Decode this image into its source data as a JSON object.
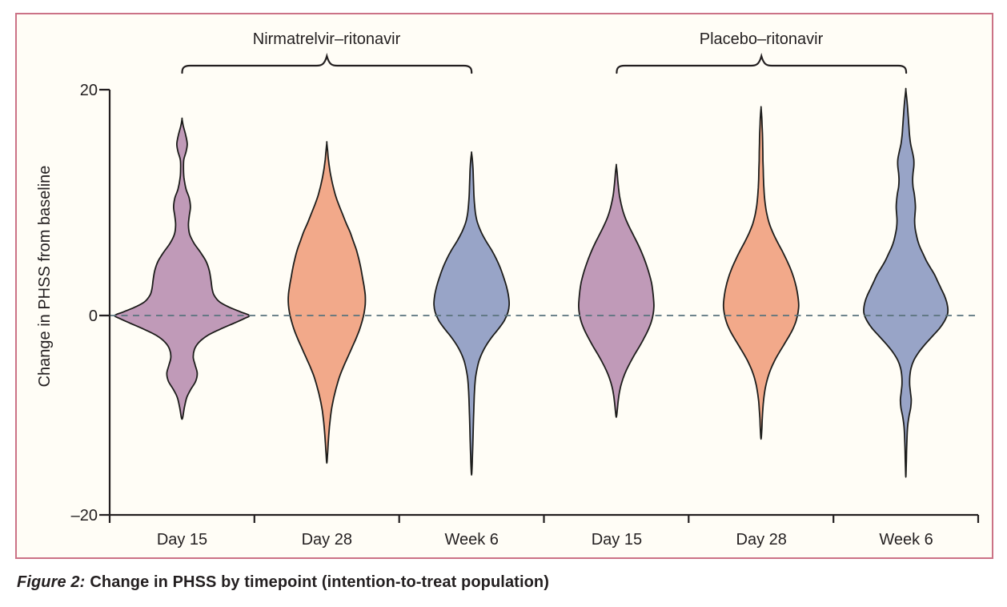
{
  "figure": {
    "caption_prefix": "Figure 2:",
    "caption_text": "Change in PHSS by timepoint (intention-to-treat population)"
  },
  "colors": {
    "panel_border": "#cb7286",
    "panel_background": "#fffdf6",
    "violin_purple": "#c09ab8",
    "violin_orange": "#f2a98a",
    "violin_blue": "#98a4c7",
    "outline": "#1d1d1b",
    "zero_line": "#5a737e",
    "axis": "#231f20"
  },
  "chart_data": {
    "type": "violin",
    "title": "",
    "ylabel": "Change in PHSS from baseline",
    "ylim": [
      -20,
      20
    ],
    "yticks": [
      20,
      0,
      -20
    ],
    "ytick_labels": [
      "20",
      "0",
      "–20"
    ],
    "zero_reference_line": {
      "y": 0,
      "style": "dashed"
    },
    "legend": "none",
    "groups": [
      {
        "label": "Nirmatrelvir–ritonavir",
        "timepoints": [
          "Day 15",
          "Day 28",
          "Week 6"
        ]
      },
      {
        "label": "Placebo–ritonavir",
        "timepoints": [
          "Day 15",
          "Day 28",
          "Week 6"
        ]
      }
    ],
    "outline_color": "#1d1d1b",
    "series_note": "profile = [change-in-PHSS value, violin half-width in px] pairs from top of violin to bottom; width encodes density",
    "series": [
      {
        "group_key": "nirmatrelvir-ritonavir",
        "timepoint": "Day 15",
        "color": "#c09ab8",
        "value_range": [
          -10.4,
          17.4
        ],
        "profile": [
          [
            17.4,
            0
          ],
          [
            16.8,
            1.5
          ],
          [
            16.0,
            4.5
          ],
          [
            15.2,
            6.5
          ],
          [
            14.5,
            5
          ],
          [
            13.8,
            2.2
          ],
          [
            13.0,
            1.8
          ],
          [
            12.2,
            2.4
          ],
          [
            11.2,
            5
          ],
          [
            10.4,
            9
          ],
          [
            9.6,
            10.5
          ],
          [
            8.8,
            9
          ],
          [
            8.0,
            8
          ],
          [
            7.2,
            9.5
          ],
          [
            6.4,
            15
          ],
          [
            5.6,
            23
          ],
          [
            4.8,
            30
          ],
          [
            4.0,
            34
          ],
          [
            3.2,
            36
          ],
          [
            2.4,
            37.5
          ],
          [
            1.8,
            40
          ],
          [
            1.2,
            47
          ],
          [
            0.7,
            60
          ],
          [
            0.3,
            74
          ],
          [
            0,
            84
          ],
          [
            -0.3,
            78
          ],
          [
            -0.8,
            64
          ],
          [
            -1.4,
            47
          ],
          [
            -2.0,
            32
          ],
          [
            -2.7,
            21
          ],
          [
            -3.4,
            15.5
          ],
          [
            -4.2,
            14
          ],
          [
            -5.0,
            16.5
          ],
          [
            -5.8,
            19
          ],
          [
            -6.6,
            17
          ],
          [
            -7.4,
            11
          ],
          [
            -8.2,
            6
          ],
          [
            -9.2,
            3
          ],
          [
            -10.4,
            0
          ]
        ]
      },
      {
        "group_key": "nirmatrelvir-ritonavir",
        "timepoint": "Day 28",
        "color": "#f2a98a",
        "value_range": [
          -14.8,
          15.3
        ],
        "profile": [
          [
            15.3,
            0
          ],
          [
            14.6,
            1
          ],
          [
            13.8,
            2
          ],
          [
            13.0,
            3.5
          ],
          [
            12.2,
            5.5
          ],
          [
            11.4,
            8
          ],
          [
            10.6,
            11
          ],
          [
            9.8,
            15
          ],
          [
            9.0,
            19.5
          ],
          [
            8.2,
            24
          ],
          [
            7.4,
            29
          ],
          [
            6.6,
            33
          ],
          [
            5.8,
            37
          ],
          [
            5.0,
            40
          ],
          [
            4.2,
            42.5
          ],
          [
            3.4,
            44.5
          ],
          [
            2.6,
            46.5
          ],
          [
            1.8,
            48
          ],
          [
            1.0,
            48
          ],
          [
            0.2,
            46.5
          ],
          [
            -0.6,
            44
          ],
          [
            -1.5,
            40.5
          ],
          [
            -2.4,
            36
          ],
          [
            -3.3,
            31
          ],
          [
            -4.2,
            26
          ],
          [
            -5.1,
            21
          ],
          [
            -6.0,
            16.5
          ],
          [
            -6.9,
            13
          ],
          [
            -7.8,
            10
          ],
          [
            -8.7,
            7.5
          ],
          [
            -9.6,
            5.5
          ],
          [
            -10.6,
            4
          ],
          [
            -11.6,
            2.8
          ],
          [
            -12.7,
            1.8
          ],
          [
            -13.8,
            1
          ],
          [
            -14.8,
            0
          ]
        ]
      },
      {
        "group_key": "nirmatrelvir-ritonavir",
        "timepoint": "Week 6",
        "color": "#98a4c7",
        "value_range": [
          -16,
          14.4
        ],
        "profile": [
          [
            14.4,
            0
          ],
          [
            13.8,
            1
          ],
          [
            13.0,
            1.8
          ],
          [
            12.2,
            2.2
          ],
          [
            11.4,
            2.6
          ],
          [
            10.6,
            3
          ],
          [
            9.8,
            3.8
          ],
          [
            9.0,
            5
          ],
          [
            8.2,
            7.5
          ],
          [
            7.4,
            12
          ],
          [
            6.6,
            18
          ],
          [
            5.8,
            25
          ],
          [
            5.0,
            31
          ],
          [
            4.2,
            36
          ],
          [
            3.4,
            40
          ],
          [
            2.6,
            43.5
          ],
          [
            1.8,
            46
          ],
          [
            1.0,
            47
          ],
          [
            0.3,
            45.5
          ],
          [
            -0.5,
            41
          ],
          [
            -1.3,
            34
          ],
          [
            -2.1,
            26
          ],
          [
            -2.9,
            19
          ],
          [
            -3.7,
            13.5
          ],
          [
            -4.5,
            9.5
          ],
          [
            -5.3,
            7
          ],
          [
            -6.1,
            5.2
          ],
          [
            -6.9,
            4.2
          ],
          [
            -7.7,
            3.6
          ],
          [
            -8.5,
            3.2
          ],
          [
            -9.5,
            2.8
          ],
          [
            -10.5,
            2.4
          ],
          [
            -11.7,
            2
          ],
          [
            -12.9,
            1.6
          ],
          [
            -14.1,
            1.1
          ],
          [
            -15.3,
            0.6
          ],
          [
            -16,
            0
          ]
        ]
      },
      {
        "group_key": "placebo-ritonavir",
        "timepoint": "Day 15",
        "color": "#c09ab8",
        "value_range": [
          -10.2,
          13.3
        ],
        "profile": [
          [
            13.3,
            0
          ],
          [
            12.7,
            1
          ],
          [
            12.0,
            1.8
          ],
          [
            11.3,
            2.8
          ],
          [
            10.6,
            4
          ],
          [
            9.9,
            6
          ],
          [
            9.2,
            8.5
          ],
          [
            8.5,
            12
          ],
          [
            7.8,
            16.5
          ],
          [
            7.1,
            21.5
          ],
          [
            6.4,
            26.5
          ],
          [
            5.7,
            31
          ],
          [
            5.0,
            35
          ],
          [
            4.3,
            38.5
          ],
          [
            3.6,
            41.5
          ],
          [
            2.9,
            44
          ],
          [
            2.2,
            45.5
          ],
          [
            1.5,
            46.5
          ],
          [
            0.8,
            47
          ],
          [
            0.1,
            46
          ],
          [
            -0.7,
            43.5
          ],
          [
            -1.5,
            39.5
          ],
          [
            -2.3,
            34.5
          ],
          [
            -3.1,
            29
          ],
          [
            -3.9,
            23
          ],
          [
            -4.7,
            17.5
          ],
          [
            -5.5,
            12.5
          ],
          [
            -6.3,
            8.5
          ],
          [
            -7.1,
            5.5
          ],
          [
            -7.9,
            3.5
          ],
          [
            -8.7,
            2.2
          ],
          [
            -9.5,
            1.2
          ],
          [
            -10.2,
            0
          ]
        ]
      },
      {
        "group_key": "placebo-ritonavir",
        "timepoint": "Day 28",
        "color": "#f2a98a",
        "value_range": [
          -12.4,
          18.4
        ],
        "profile": [
          [
            18.4,
            0
          ],
          [
            17.7,
            0.8
          ],
          [
            16.9,
            1.3
          ],
          [
            16.1,
            1.7
          ],
          [
            15.3,
            2
          ],
          [
            14.5,
            2.2
          ],
          [
            13.7,
            2.4
          ],
          [
            12.9,
            2.7
          ],
          [
            12.1,
            3
          ],
          [
            11.3,
            3.5
          ],
          [
            10.5,
            4.3
          ],
          [
            9.7,
            5.5
          ],
          [
            8.9,
            7.5
          ],
          [
            8.1,
            10.5
          ],
          [
            7.3,
            15
          ],
          [
            6.5,
            20.5
          ],
          [
            5.7,
            26.5
          ],
          [
            4.9,
            32
          ],
          [
            4.1,
            37
          ],
          [
            3.3,
            41
          ],
          [
            2.5,
            44
          ],
          [
            1.7,
            46
          ],
          [
            0.9,
            47
          ],
          [
            0.2,
            46
          ],
          [
            -0.6,
            43.5
          ],
          [
            -1.4,
            39.5
          ],
          [
            -2.2,
            34
          ],
          [
            -3.0,
            28
          ],
          [
            -3.8,
            22
          ],
          [
            -4.6,
            16.5
          ],
          [
            -5.4,
            12
          ],
          [
            -6.2,
            8.5
          ],
          [
            -7.0,
            6
          ],
          [
            -7.8,
            4.2
          ],
          [
            -8.6,
            3
          ],
          [
            -9.4,
            2.2
          ],
          [
            -10.3,
            1.5
          ],
          [
            -11.3,
            1
          ],
          [
            -12.4,
            0
          ]
        ]
      },
      {
        "group_key": "placebo-ritonavir",
        "timepoint": "Week 6",
        "color": "#98a4c7",
        "value_range": [
          -16.2,
          20
        ],
        "profile": [
          [
            20,
            0
          ],
          [
            19.2,
            1.2
          ],
          [
            18.4,
            2.2
          ],
          [
            17.6,
            3
          ],
          [
            16.8,
            3.8
          ],
          [
            16.0,
            4.6
          ],
          [
            15.2,
            6
          ],
          [
            14.4,
            8.5
          ],
          [
            13.8,
            10
          ],
          [
            13.2,
            10
          ],
          [
            12.6,
            9
          ],
          [
            12.0,
            8.5
          ],
          [
            11.4,
            9
          ],
          [
            10.8,
            10.5
          ],
          [
            10.2,
            11.5
          ],
          [
            9.6,
            12
          ],
          [
            9.0,
            11.5
          ],
          [
            8.4,
            11
          ],
          [
            7.8,
            11.5
          ],
          [
            7.2,
            13
          ],
          [
            6.6,
            15
          ],
          [
            6.0,
            18
          ],
          [
            5.4,
            22
          ],
          [
            4.8,
            26
          ],
          [
            4.2,
            31
          ],
          [
            3.6,
            36
          ],
          [
            3.0,
            40
          ],
          [
            2.4,
            44
          ],
          [
            1.8,
            48
          ],
          [
            1.2,
            51
          ],
          [
            0.6,
            52.5
          ],
          [
            0.1,
            52
          ],
          [
            -0.6,
            48
          ],
          [
            -1.3,
            42
          ],
          [
            -2.1,
            33
          ],
          [
            -2.9,
            24
          ],
          [
            -3.7,
            16
          ],
          [
            -4.5,
            10
          ],
          [
            -5.3,
            6.5
          ],
          [
            -6.1,
            5
          ],
          [
            -6.9,
            4.8
          ],
          [
            -7.7,
            5.8
          ],
          [
            -8.5,
            6.8
          ],
          [
            -9.3,
            6
          ],
          [
            -10.1,
            4
          ],
          [
            -11.0,
            2.4
          ],
          [
            -12.0,
            1.6
          ],
          [
            -13.4,
            1
          ],
          [
            -14.8,
            0.6
          ],
          [
            -16.2,
            0
          ]
        ]
      }
    ]
  }
}
